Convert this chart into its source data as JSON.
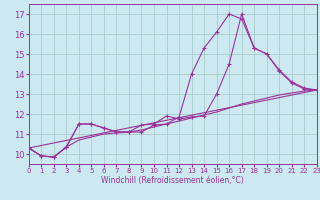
{
  "xlabel": "Windchill (Refroidissement éolien,°C)",
  "background_color": "#cce8f0",
  "grid_color": "#aacccc",
  "line_color": "#993399",
  "xmin": 0,
  "xmax": 23,
  "ymin": 9.5,
  "ymax": 17.5,
  "yticks": [
    10,
    11,
    12,
    13,
    14,
    15,
    16,
    17
  ],
  "xticks": [
    0,
    1,
    2,
    3,
    4,
    5,
    6,
    7,
    8,
    9,
    10,
    11,
    12,
    13,
    14,
    15,
    16,
    17,
    18,
    19,
    20,
    21,
    22,
    23
  ],
  "line1_x": [
    0,
    1,
    2,
    3,
    4,
    5,
    6,
    7,
    8,
    9,
    10,
    11,
    12,
    13,
    14,
    15,
    16,
    17,
    18,
    19,
    20,
    21,
    22,
    23
  ],
  "line1_y": [
    10.3,
    9.9,
    9.85,
    10.35,
    11.5,
    11.5,
    11.3,
    11.1,
    11.1,
    11.1,
    11.45,
    11.5,
    11.85,
    14.0,
    15.3,
    16.1,
    17.0,
    16.75,
    15.3,
    15.0,
    14.2,
    13.6,
    13.3,
    13.2
  ],
  "line2_x": [
    0,
    1,
    2,
    3,
    4,
    5,
    6,
    7,
    8,
    9,
    10,
    11,
    12,
    13,
    14,
    15,
    16,
    17,
    18,
    19,
    20,
    21,
    22,
    23
  ],
  "line2_y": [
    10.3,
    9.9,
    9.85,
    10.35,
    11.5,
    11.5,
    11.3,
    11.1,
    11.1,
    11.45,
    11.5,
    11.9,
    11.75,
    11.85,
    11.9,
    13.0,
    14.5,
    17.0,
    15.3,
    15.0,
    14.15,
    13.55,
    13.25,
    13.2
  ],
  "line3_x": [
    0,
    23
  ],
  "line3_y": [
    10.3,
    13.2
  ],
  "line4_x": [
    0,
    1,
    2,
    3,
    4,
    5,
    6,
    7,
    8,
    9,
    10,
    11,
    12,
    13,
    14,
    15,
    16,
    17,
    18,
    19,
    20,
    21,
    22,
    23
  ],
  "line4_y": [
    10.3,
    9.9,
    9.85,
    10.35,
    10.7,
    10.85,
    11.0,
    11.05,
    11.1,
    11.2,
    11.35,
    11.5,
    11.65,
    11.8,
    11.95,
    12.1,
    12.3,
    12.5,
    12.65,
    12.8,
    12.95,
    13.05,
    13.15,
    13.2
  ]
}
